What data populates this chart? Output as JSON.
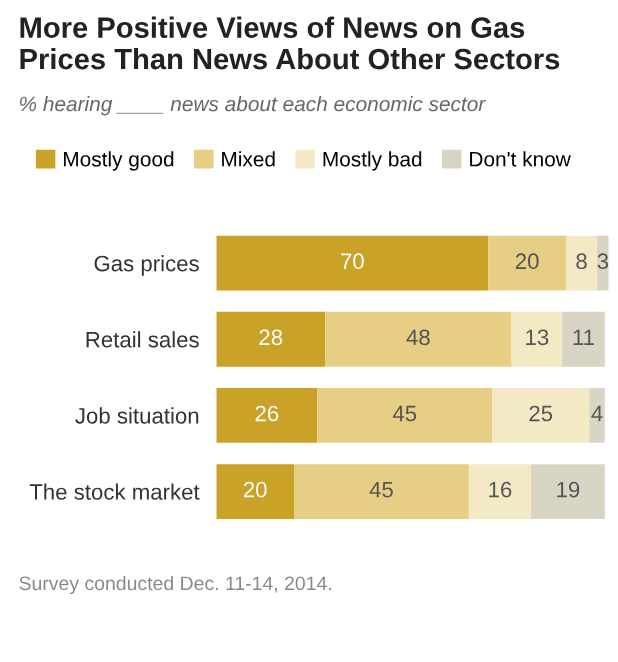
{
  "chart_data": {
    "type": "bar",
    "orientation": "horizontal",
    "stacked": true,
    "data_labels": true,
    "legend": "top",
    "tick_labels": "y",
    "grid": false,
    "title": "More Positive Views of News on Gas Prices Than News About Other Sectors",
    "subtitle": "% hearing ____ news about each economic sector",
    "annotations": [
      "Survey conducted Dec. 11-14, 2014."
    ],
    "categories": [
      "Gas prices",
      "Retail sales",
      "Job situation",
      "The stock market"
    ],
    "series": [
      {
        "name": "Mostly good",
        "color": "#c9a227",
        "values": [
          70,
          28,
          26,
          20
        ]
      },
      {
        "name": "Mixed",
        "color": "#e6cf85",
        "values": [
          20,
          48,
          45,
          45
        ]
      },
      {
        "name": "Mostly bad",
        "color": "#f3e9c4",
        "values": [
          8,
          13,
          25,
          16
        ]
      },
      {
        "name": "Don't know",
        "color": "#d9d5c5",
        "values": [
          3,
          11,
          4,
          19
        ]
      }
    ]
  }
}
